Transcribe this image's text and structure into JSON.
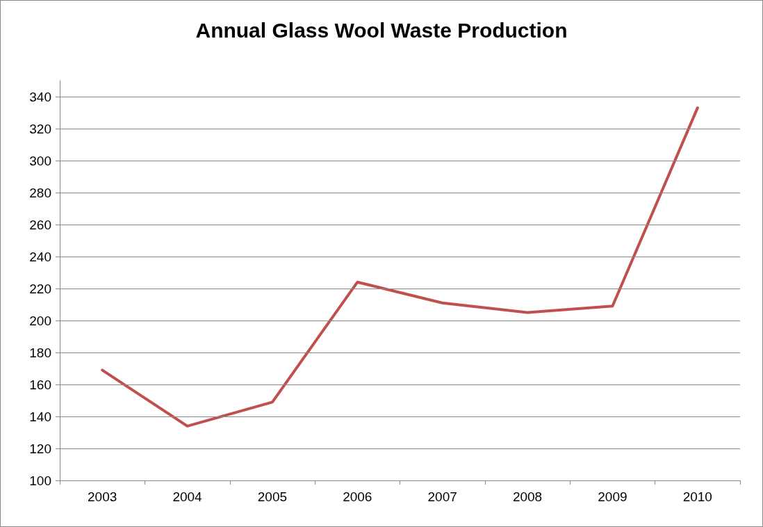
{
  "chart_data": {
    "type": "line",
    "title": "Annual Glass Wool Waste Production",
    "categories": [
      "2003",
      "2004",
      "2005",
      "2006",
      "2007",
      "2008",
      "2009",
      "2010"
    ],
    "series": [
      {
        "color": "#c0504d",
        "values": [
          169,
          134,
          149,
          224,
          211,
          205,
          209,
          333
        ]
      }
    ],
    "ylim": [
      100,
      350
    ],
    "yticks": [
      100,
      120,
      140,
      160,
      180,
      200,
      220,
      240,
      260,
      280,
      300,
      320,
      340
    ],
    "grid": "y",
    "marker": "none",
    "line_style": "solid"
  }
}
